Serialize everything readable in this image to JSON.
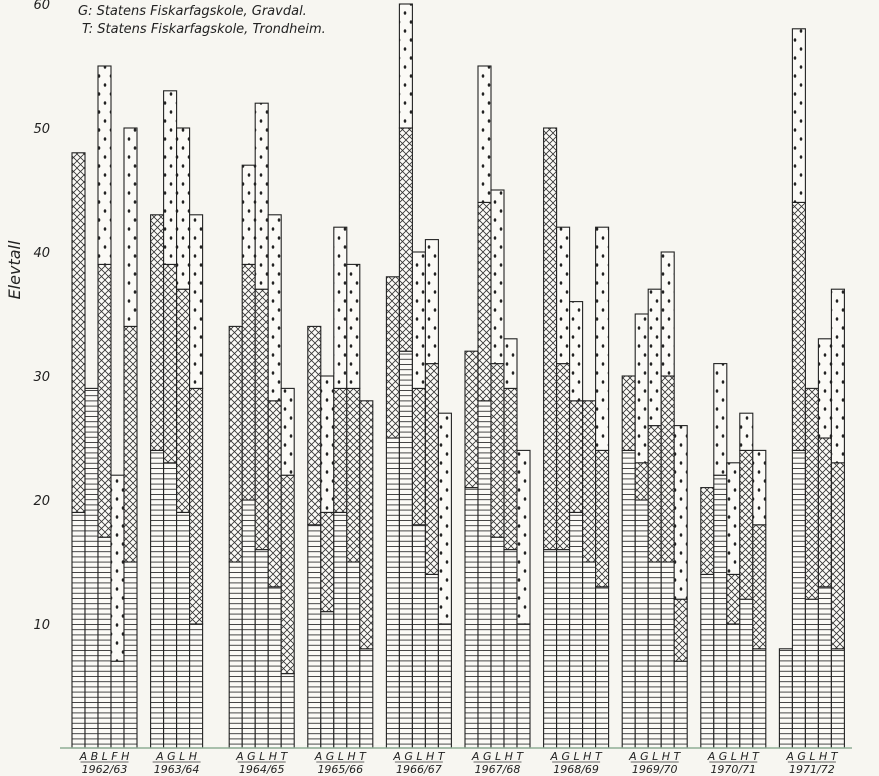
{
  "chart_data": {
    "type": "bar",
    "legend": [
      {
        "key": "G",
        "text": "G: Statens Fiskarfagskole, Gravdal."
      },
      {
        "key": "T",
        "text": "T: Statens Fiskarfagskole, Trondheim."
      }
    ],
    "ylabel": "Elevtall",
    "ylim": [
      0,
      60
    ],
    "yticks": [
      10,
      20,
      30,
      40,
      50,
      60
    ],
    "segment_order": [
      "horizontal-lines",
      "cross-hatch",
      "dots"
    ],
    "groups": [
      {
        "year": "1962/63",
        "letters": "A B L F H",
        "bars": [
          {
            "label": "A",
            "segments": [
              19,
              29,
              0
            ]
          },
          {
            "label": "B",
            "segments": [
              29,
              0,
              0
            ]
          },
          {
            "label": "L",
            "segments": [
              17,
              22,
              16
            ]
          },
          {
            "label": "F",
            "segments": [
              7,
              0,
              15
            ]
          },
          {
            "label": "H",
            "segments": [
              15,
              19,
              16
            ]
          }
        ]
      },
      {
        "year": "1963/64",
        "letters": "A G L H",
        "bars": [
          {
            "label": "A",
            "segments": [
              24,
              19,
              0
            ]
          },
          {
            "label": "G",
            "segments": [
              23,
              16,
              14
            ]
          },
          {
            "label": "L",
            "segments": [
              19,
              18,
              13
            ]
          },
          {
            "label": "H",
            "segments": [
              10,
              19,
              14
            ]
          }
        ]
      },
      {
        "year": "1964/65",
        "letters": "A G L H T",
        "bars": [
          {
            "label": "A",
            "segments": [
              15,
              19,
              0
            ]
          },
          {
            "label": "G",
            "segments": [
              20,
              19,
              8
            ]
          },
          {
            "label": "L",
            "segments": [
              16,
              21,
              15
            ]
          },
          {
            "label": "H",
            "segments": [
              13,
              15,
              15
            ]
          },
          {
            "label": "T",
            "segments": [
              6,
              16,
              7
            ]
          }
        ]
      },
      {
        "year": "1965/66",
        "letters": "A G L H T",
        "bars": [
          {
            "label": "A",
            "segments": [
              18,
              16,
              0
            ]
          },
          {
            "label": "G",
            "segments": [
              11,
              8,
              11
            ]
          },
          {
            "label": "L",
            "segments": [
              19,
              10,
              13
            ]
          },
          {
            "label": "H",
            "segments": [
              15,
              14,
              10
            ]
          },
          {
            "label": "T",
            "segments": [
              8,
              20,
              0
            ]
          }
        ]
      },
      {
        "year": "1966/67",
        "letters": "A G L H T",
        "bars": [
          {
            "label": "A",
            "segments": [
              25,
              13,
              0
            ]
          },
          {
            "label": "G",
            "segments": [
              32,
              18,
              10
            ]
          },
          {
            "label": "L",
            "segments": [
              18,
              11,
              11
            ]
          },
          {
            "label": "H",
            "segments": [
              14,
              17,
              10
            ]
          },
          {
            "label": "T",
            "segments": [
              10,
              0,
              17
            ]
          }
        ]
      },
      {
        "year": "1967/68",
        "letters": "A G L H T",
        "bars": [
          {
            "label": "A",
            "segments": [
              21,
              11,
              0
            ]
          },
          {
            "label": "G",
            "segments": [
              28,
              16,
              11
            ]
          },
          {
            "label": "L",
            "segments": [
              17,
              14,
              14
            ]
          },
          {
            "label": "H",
            "segments": [
              16,
              13,
              4
            ]
          },
          {
            "label": "T",
            "segments": [
              10,
              0,
              14
            ]
          }
        ]
      },
      {
        "year": "1968/69",
        "letters": "A G L H T",
        "bars": [
          {
            "label": "A",
            "segments": [
              16,
              34,
              0
            ]
          },
          {
            "label": "G",
            "segments": [
              16,
              15,
              11
            ]
          },
          {
            "label": "L",
            "segments": [
              19,
              9,
              8
            ]
          },
          {
            "label": "H",
            "segments": [
              15,
              13,
              0
            ]
          },
          {
            "label": "T",
            "segments": [
              13,
              11,
              18
            ]
          }
        ]
      },
      {
        "year": "1969/70",
        "letters": "A G L H T",
        "bars": [
          {
            "label": "A",
            "segments": [
              24,
              6,
              0
            ]
          },
          {
            "label": "G",
            "segments": [
              20,
              3,
              12
            ]
          },
          {
            "label": "L",
            "segments": [
              15,
              11,
              11
            ]
          },
          {
            "label": "H",
            "segments": [
              15,
              15,
              10
            ]
          },
          {
            "label": "T",
            "segments": [
              7,
              5,
              14
            ]
          }
        ]
      },
      {
        "year": "1970/71",
        "letters": "A G L H T",
        "bars": [
          {
            "label": "A",
            "segments": [
              14,
              7,
              0
            ]
          },
          {
            "label": "G",
            "segments": [
              22,
              0,
              9
            ]
          },
          {
            "label": "L",
            "segments": [
              10,
              4,
              9
            ]
          },
          {
            "label": "H",
            "segments": [
              12,
              12,
              3
            ]
          },
          {
            "label": "T",
            "segments": [
              8,
              10,
              6
            ]
          }
        ]
      },
      {
        "year": "1971/72",
        "letters": "A G L H T",
        "bars": [
          {
            "label": "A",
            "segments": [
              8,
              0,
              0
            ]
          },
          {
            "label": "G",
            "segments": [
              24,
              20,
              14
            ]
          },
          {
            "label": "L",
            "segments": [
              12,
              17,
              0
            ]
          },
          {
            "label": "H",
            "segments": [
              13,
              12,
              8
            ]
          },
          {
            "label": "T",
            "segments": [
              8,
              15,
              14
            ]
          }
        ]
      }
    ]
  }
}
